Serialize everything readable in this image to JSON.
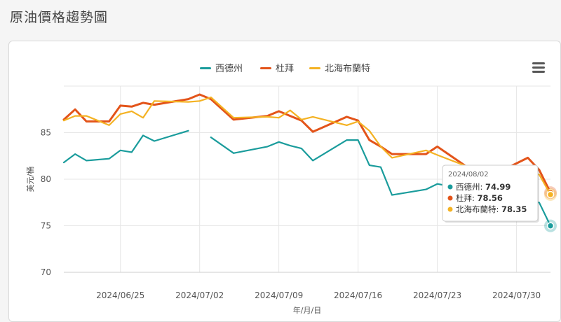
{
  "page": {
    "title": "原油價格趨勢圖"
  },
  "chart_data": {
    "type": "line",
    "xlabel": "年/月/日",
    "ylabel": "美元/桶",
    "ylim": [
      70,
      90
    ],
    "y_ticks": [
      70,
      75,
      80,
      85
    ],
    "x_tick_labels": [
      "2024/06/25",
      "2024/07/02",
      "2024/07/09",
      "2024/07/16",
      "2024/07/23",
      "2024/07/30"
    ],
    "x_tick_dates": [
      "2024-06-25",
      "2024-07-02",
      "2024-07-09",
      "2024-07-16",
      "2024-07-23",
      "2024-07-30"
    ],
    "x_range": [
      "2024-06-20",
      "2024-08-02"
    ],
    "legend_position": "top-center",
    "grid": true,
    "series": [
      {
        "name": "西德州",
        "color": "#1a9c9c",
        "points": [
          [
            "2024-06-20",
            81.8
          ],
          [
            "2024-06-21",
            82.7
          ],
          [
            "2024-06-22",
            82.0
          ],
          [
            "2024-06-24",
            82.2
          ],
          [
            "2024-06-25",
            83.1
          ],
          [
            "2024-06-26",
            82.9
          ],
          [
            "2024-06-27",
            84.7
          ],
          [
            "2024-06-28",
            84.1
          ],
          [
            "2024-07-01",
            85.2
          ],
          [
            "2024-07-02",
            null
          ],
          [
            "2024-07-03",
            84.5
          ],
          [
            "2024-07-05",
            82.8
          ],
          [
            "2024-07-08",
            83.5
          ],
          [
            "2024-07-09",
            84.0
          ],
          [
            "2024-07-10",
            83.6
          ],
          [
            "2024-07-11",
            83.3
          ],
          [
            "2024-07-12",
            82.0
          ],
          [
            "2024-07-15",
            84.2
          ],
          [
            "2024-07-16",
            84.2
          ],
          [
            "2024-07-17",
            81.5
          ],
          [
            "2024-07-18",
            81.3
          ],
          [
            "2024-07-19",
            78.3
          ],
          [
            "2024-07-22",
            78.9
          ],
          [
            "2024-07-23",
            79.5
          ],
          [
            "2024-07-31",
            77.7
          ],
          [
            "2024-08-01",
            77.5
          ],
          [
            "2024-08-02",
            74.99
          ]
        ]
      },
      {
        "name": "杜拜",
        "color": "#e3541a",
        "points": [
          [
            "2024-06-20",
            86.4
          ],
          [
            "2024-06-21",
            87.5
          ],
          [
            "2024-06-22",
            86.2
          ],
          [
            "2024-06-24",
            86.2
          ],
          [
            "2024-06-25",
            87.9
          ],
          [
            "2024-06-26",
            87.8
          ],
          [
            "2024-06-27",
            88.2
          ],
          [
            "2024-06-28",
            88.0
          ],
          [
            "2024-07-01",
            88.6
          ],
          [
            "2024-07-02",
            89.1
          ],
          [
            "2024-07-03",
            88.6
          ],
          [
            "2024-07-05",
            86.4
          ],
          [
            "2024-07-08",
            86.8
          ],
          [
            "2024-07-09",
            87.3
          ],
          [
            "2024-07-10",
            86.8
          ],
          [
            "2024-07-11",
            86.3
          ],
          [
            "2024-07-12",
            85.1
          ],
          [
            "2024-07-15",
            86.7
          ],
          [
            "2024-07-16",
            86.3
          ],
          [
            "2024-07-17",
            84.2
          ],
          [
            "2024-07-18",
            83.5
          ],
          [
            "2024-07-19",
            82.7
          ],
          [
            "2024-07-22",
            82.7
          ],
          [
            "2024-07-23",
            83.5
          ],
          [
            "2024-07-26",
            81.0
          ],
          [
            "2024-07-29",
            81.1
          ],
          [
            "2024-07-31",
            82.3
          ],
          [
            "2024-08-01",
            81.0
          ],
          [
            "2024-08-02",
            78.56
          ]
        ]
      },
      {
        "name": "北海布蘭特",
        "color": "#f4b223",
        "points": [
          [
            "2024-06-20",
            86.3
          ],
          [
            "2024-06-21",
            86.8
          ],
          [
            "2024-06-22",
            86.8
          ],
          [
            "2024-06-24",
            85.8
          ],
          [
            "2024-06-25",
            87.0
          ],
          [
            "2024-06-26",
            87.3
          ],
          [
            "2024-06-27",
            86.6
          ],
          [
            "2024-06-28",
            88.4
          ],
          [
            "2024-07-01",
            88.3
          ],
          [
            "2024-07-02",
            88.4
          ],
          [
            "2024-07-03",
            88.8
          ],
          [
            "2024-07-05",
            86.6
          ],
          [
            "2024-07-08",
            86.7
          ],
          [
            "2024-07-09",
            86.6
          ],
          [
            "2024-07-10",
            87.4
          ],
          [
            "2024-07-11",
            86.4
          ],
          [
            "2024-07-12",
            86.7
          ],
          [
            "2024-07-15",
            85.8
          ],
          [
            "2024-07-16",
            86.2
          ],
          [
            "2024-07-17",
            85.2
          ],
          [
            "2024-07-18",
            83.5
          ],
          [
            "2024-07-19",
            82.3
          ],
          [
            "2024-07-22",
            83.1
          ],
          [
            "2024-07-23",
            82.6
          ],
          [
            "2024-07-26",
            81.2
          ],
          [
            "2024-07-29",
            80.0
          ],
          [
            "2024-07-31",
            80.7
          ],
          [
            "2024-08-01",
            80.5
          ],
          [
            "2024-08-02",
            78.35
          ]
        ]
      }
    ],
    "tooltip": {
      "date": "2024/08/02",
      "rows": [
        {
          "name": "西德州",
          "value": "74.99",
          "color": "#1a9c9c"
        },
        {
          "name": "杜拜",
          "value": "78.56",
          "color": "#e3541a"
        },
        {
          "name": "北海布蘭特",
          "value": "78.35",
          "color": "#f4b223"
        }
      ]
    }
  }
}
